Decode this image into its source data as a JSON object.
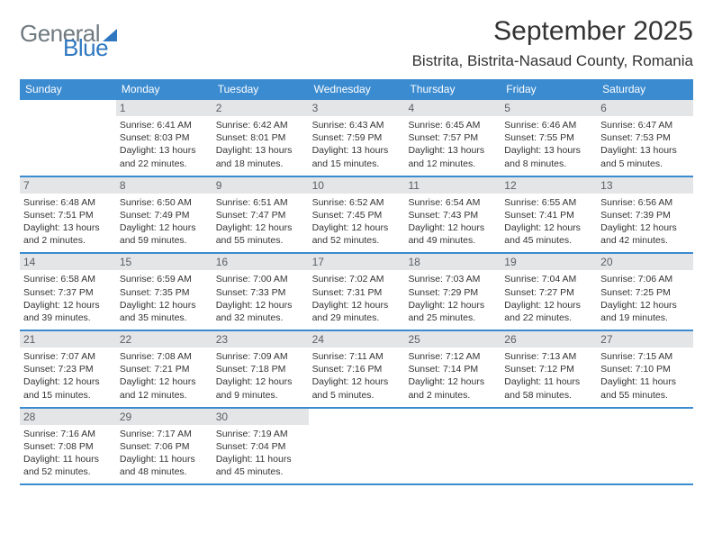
{
  "brand": {
    "part1": "General",
    "part2": "Blue"
  },
  "title": "September 2025",
  "location": "Bistrita, Bistrita-Nasaud County, Romania",
  "header_bg": "#3b8bd0",
  "header_fg": "#ffffff",
  "daynum_bg": "#e3e5e7",
  "daynum_fg": "#5a5f63",
  "text_color": "#333333",
  "rule_color": "#3b8bd0",
  "weekdays": [
    "Sunday",
    "Monday",
    "Tuesday",
    "Wednesday",
    "Thursday",
    "Friday",
    "Saturday"
  ],
  "weeks": [
    [
      {
        "n": "",
        "sr": "",
        "ss": "",
        "dl": ""
      },
      {
        "n": "1",
        "sr": "Sunrise: 6:41 AM",
        "ss": "Sunset: 8:03 PM",
        "dl": "Daylight: 13 hours and 22 minutes."
      },
      {
        "n": "2",
        "sr": "Sunrise: 6:42 AM",
        "ss": "Sunset: 8:01 PM",
        "dl": "Daylight: 13 hours and 18 minutes."
      },
      {
        "n": "3",
        "sr": "Sunrise: 6:43 AM",
        "ss": "Sunset: 7:59 PM",
        "dl": "Daylight: 13 hours and 15 minutes."
      },
      {
        "n": "4",
        "sr": "Sunrise: 6:45 AM",
        "ss": "Sunset: 7:57 PM",
        "dl": "Daylight: 13 hours and 12 minutes."
      },
      {
        "n": "5",
        "sr": "Sunrise: 6:46 AM",
        "ss": "Sunset: 7:55 PM",
        "dl": "Daylight: 13 hours and 8 minutes."
      },
      {
        "n": "6",
        "sr": "Sunrise: 6:47 AM",
        "ss": "Sunset: 7:53 PM",
        "dl": "Daylight: 13 hours and 5 minutes."
      }
    ],
    [
      {
        "n": "7",
        "sr": "Sunrise: 6:48 AM",
        "ss": "Sunset: 7:51 PM",
        "dl": "Daylight: 13 hours and 2 minutes."
      },
      {
        "n": "8",
        "sr": "Sunrise: 6:50 AM",
        "ss": "Sunset: 7:49 PM",
        "dl": "Daylight: 12 hours and 59 minutes."
      },
      {
        "n": "9",
        "sr": "Sunrise: 6:51 AM",
        "ss": "Sunset: 7:47 PM",
        "dl": "Daylight: 12 hours and 55 minutes."
      },
      {
        "n": "10",
        "sr": "Sunrise: 6:52 AM",
        "ss": "Sunset: 7:45 PM",
        "dl": "Daylight: 12 hours and 52 minutes."
      },
      {
        "n": "11",
        "sr": "Sunrise: 6:54 AM",
        "ss": "Sunset: 7:43 PM",
        "dl": "Daylight: 12 hours and 49 minutes."
      },
      {
        "n": "12",
        "sr": "Sunrise: 6:55 AM",
        "ss": "Sunset: 7:41 PM",
        "dl": "Daylight: 12 hours and 45 minutes."
      },
      {
        "n": "13",
        "sr": "Sunrise: 6:56 AM",
        "ss": "Sunset: 7:39 PM",
        "dl": "Daylight: 12 hours and 42 minutes."
      }
    ],
    [
      {
        "n": "14",
        "sr": "Sunrise: 6:58 AM",
        "ss": "Sunset: 7:37 PM",
        "dl": "Daylight: 12 hours and 39 minutes."
      },
      {
        "n": "15",
        "sr": "Sunrise: 6:59 AM",
        "ss": "Sunset: 7:35 PM",
        "dl": "Daylight: 12 hours and 35 minutes."
      },
      {
        "n": "16",
        "sr": "Sunrise: 7:00 AM",
        "ss": "Sunset: 7:33 PM",
        "dl": "Daylight: 12 hours and 32 minutes."
      },
      {
        "n": "17",
        "sr": "Sunrise: 7:02 AM",
        "ss": "Sunset: 7:31 PM",
        "dl": "Daylight: 12 hours and 29 minutes."
      },
      {
        "n": "18",
        "sr": "Sunrise: 7:03 AM",
        "ss": "Sunset: 7:29 PM",
        "dl": "Daylight: 12 hours and 25 minutes."
      },
      {
        "n": "19",
        "sr": "Sunrise: 7:04 AM",
        "ss": "Sunset: 7:27 PM",
        "dl": "Daylight: 12 hours and 22 minutes."
      },
      {
        "n": "20",
        "sr": "Sunrise: 7:06 AM",
        "ss": "Sunset: 7:25 PM",
        "dl": "Daylight: 12 hours and 19 minutes."
      }
    ],
    [
      {
        "n": "21",
        "sr": "Sunrise: 7:07 AM",
        "ss": "Sunset: 7:23 PM",
        "dl": "Daylight: 12 hours and 15 minutes."
      },
      {
        "n": "22",
        "sr": "Sunrise: 7:08 AM",
        "ss": "Sunset: 7:21 PM",
        "dl": "Daylight: 12 hours and 12 minutes."
      },
      {
        "n": "23",
        "sr": "Sunrise: 7:09 AM",
        "ss": "Sunset: 7:18 PM",
        "dl": "Daylight: 12 hours and 9 minutes."
      },
      {
        "n": "24",
        "sr": "Sunrise: 7:11 AM",
        "ss": "Sunset: 7:16 PM",
        "dl": "Daylight: 12 hours and 5 minutes."
      },
      {
        "n": "25",
        "sr": "Sunrise: 7:12 AM",
        "ss": "Sunset: 7:14 PM",
        "dl": "Daylight: 12 hours and 2 minutes."
      },
      {
        "n": "26",
        "sr": "Sunrise: 7:13 AM",
        "ss": "Sunset: 7:12 PM",
        "dl": "Daylight: 11 hours and 58 minutes."
      },
      {
        "n": "27",
        "sr": "Sunrise: 7:15 AM",
        "ss": "Sunset: 7:10 PM",
        "dl": "Daylight: 11 hours and 55 minutes."
      }
    ],
    [
      {
        "n": "28",
        "sr": "Sunrise: 7:16 AM",
        "ss": "Sunset: 7:08 PM",
        "dl": "Daylight: 11 hours and 52 minutes."
      },
      {
        "n": "29",
        "sr": "Sunrise: 7:17 AM",
        "ss": "Sunset: 7:06 PM",
        "dl": "Daylight: 11 hours and 48 minutes."
      },
      {
        "n": "30",
        "sr": "Sunrise: 7:19 AM",
        "ss": "Sunset: 7:04 PM",
        "dl": "Daylight: 11 hours and 45 minutes."
      },
      {
        "n": "",
        "sr": "",
        "ss": "",
        "dl": ""
      },
      {
        "n": "",
        "sr": "",
        "ss": "",
        "dl": ""
      },
      {
        "n": "",
        "sr": "",
        "ss": "",
        "dl": ""
      },
      {
        "n": "",
        "sr": "",
        "ss": "",
        "dl": ""
      }
    ]
  ]
}
